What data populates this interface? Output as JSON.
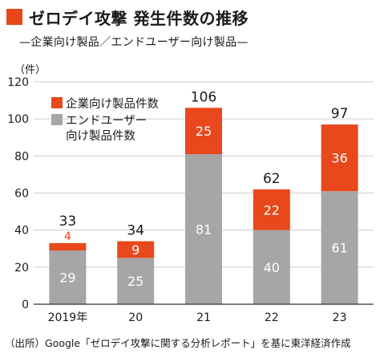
{
  "title": "ゼロデイ攻撃 発生件数の推移",
  "subtitle": "—企業向け製品／エンドユーザー向け製品—",
  "unit_label": "（件）",
  "source": "（出所）Google「ゼロデイ攻撃に関する分析レポート」を基に東洋経済作成",
  "colors": {
    "accent": "#e8481c",
    "gray": "#a6a6a6"
  },
  "chart_data": {
    "type": "bar",
    "stacked": true,
    "categories": [
      "2019年",
      "20",
      "21",
      "22",
      "23"
    ],
    "series": [
      {
        "name": "エンドユーザー向け製品件数",
        "values": [
          29,
          25,
          81,
          40,
          61
        ],
        "color": "#a6a6a6"
      },
      {
        "name": "企業向け製品件数",
        "values": [
          4,
          9,
          25,
          22,
          36
        ],
        "color": "#e8481c"
      }
    ],
    "totals": [
      33,
      34,
      106,
      62,
      97
    ],
    "yticks": [
      0,
      20,
      40,
      60,
      80,
      100,
      120
    ],
    "ylim": [
      0,
      120
    ],
    "legend": [
      {
        "label": "企業向け製品件数",
        "color": "#e8481c"
      },
      {
        "label_lines": [
          "エンドユーザー",
          "向け製品件数"
        ],
        "color": "#a6a6a6"
      }
    ],
    "grid": true,
    "legend_position": "top-left"
  }
}
